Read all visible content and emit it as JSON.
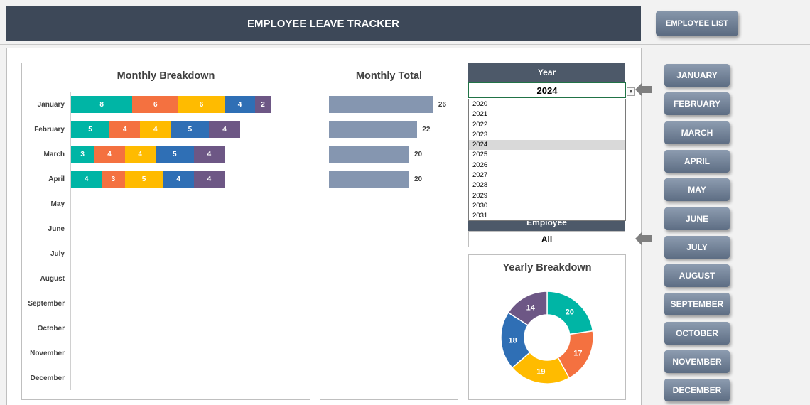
{
  "header": {
    "title": "EMPLOYEE LEAVE TRACKER",
    "employee_list_label": "EMPLOYEE LIST"
  },
  "colors": {
    "c1": "#00b5a5",
    "c2": "#f47140",
    "c3": "#ffbb00",
    "c4": "#2f6fb5",
    "c5": "#6d5785"
  },
  "monthly_breakdown": {
    "title": "Monthly Breakdown",
    "months": [
      "January",
      "February",
      "March",
      "April",
      "May",
      "June",
      "July",
      "August",
      "September",
      "October",
      "November",
      "December"
    ]
  },
  "monthly_total": {
    "title": "Monthly Total"
  },
  "year_slicer": {
    "header": "Year",
    "selected": "2024",
    "options": [
      "2020",
      "2021",
      "2022",
      "2023",
      "2024",
      "2025",
      "2026",
      "2027",
      "2028",
      "2029",
      "2030",
      "2031"
    ]
  },
  "employee_slicer": {
    "header": "Employee",
    "selected": "All"
  },
  "yearly_breakdown": {
    "title": "Yearly Breakdown"
  },
  "month_buttons": [
    "JANUARY",
    "FEBRUARY",
    "MARCH",
    "APRIL",
    "MAY",
    "JUNE",
    "JULY",
    "AUGUST",
    "SEPTEMBER",
    "OCTOBER",
    "NOVEMBER",
    "DECEMBER"
  ],
  "chart_data": [
    {
      "type": "bar",
      "orientation": "horizontal",
      "stacked": true,
      "title": "Monthly Breakdown",
      "categories": [
        "January",
        "February",
        "March",
        "April",
        "May",
        "June",
        "July",
        "August",
        "September",
        "October",
        "November",
        "December"
      ],
      "series": [
        {
          "values": [
            8,
            5,
            3,
            4,
            null,
            null,
            null,
            null,
            null,
            null,
            null,
            null
          ]
        },
        {
          "values": [
            6,
            4,
            4,
            3,
            null,
            null,
            null,
            null,
            null,
            null,
            null,
            null
          ]
        },
        {
          "values": [
            6,
            4,
            4,
            5,
            null,
            null,
            null,
            null,
            null,
            null,
            null,
            null
          ]
        },
        {
          "values": [
            4,
            5,
            5,
            4,
            null,
            null,
            null,
            null,
            null,
            null,
            null,
            null
          ]
        },
        {
          "values": [
            2,
            4,
            4,
            4,
            null,
            null,
            null,
            null,
            null,
            null,
            null,
            null
          ]
        }
      ]
    },
    {
      "type": "bar",
      "orientation": "horizontal",
      "title": "Monthly Total",
      "categories": [
        "January",
        "February",
        "March",
        "April"
      ],
      "values": [
        26,
        22,
        20,
        20
      ]
    },
    {
      "type": "pie",
      "donut": true,
      "title": "Yearly Breakdown",
      "values": [
        20,
        17,
        19,
        18,
        14
      ]
    }
  ]
}
